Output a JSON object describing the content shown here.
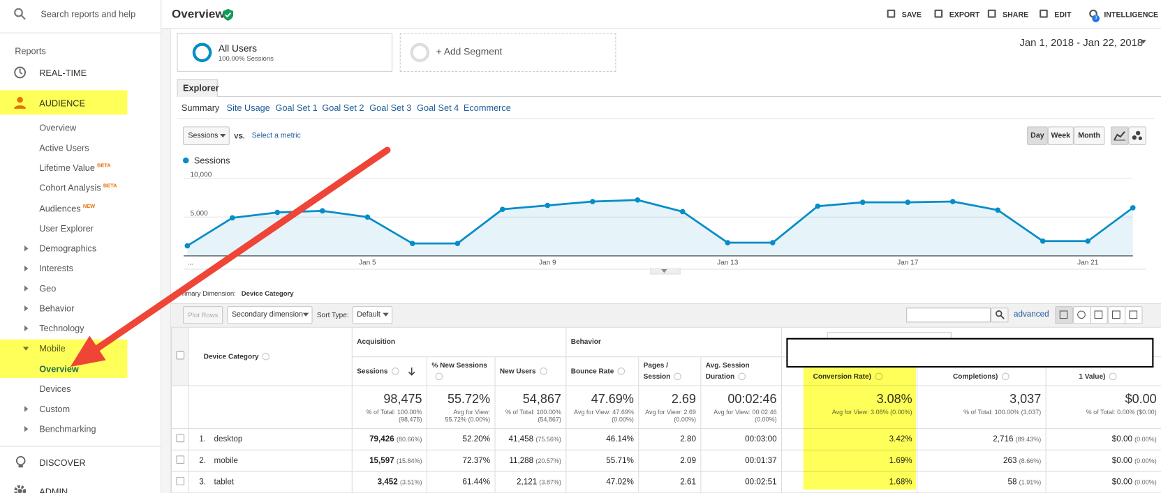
{
  "sidebar": {
    "search": "Search reports and help",
    "section": "Reports",
    "realtime": "REAL-TIME",
    "audience": {
      "label": "AUDIENCE",
      "items": [
        {
          "label": "Overview"
        },
        {
          "label": "Active Users"
        },
        {
          "label": "Lifetime Value",
          "badge": "BETA"
        },
        {
          "label": "Cohort Analysis",
          "badge": "BETA"
        },
        {
          "label": "Audiences",
          "badge": "NEW"
        },
        {
          "label": "User Explorer"
        },
        {
          "label": "Demographics",
          "expandable": true
        },
        {
          "label": "Interests",
          "expandable": true
        },
        {
          "label": "Geo",
          "expandable": true
        },
        {
          "label": "Behavior",
          "expandable": true
        },
        {
          "label": "Technology",
          "expandable": true
        },
        {
          "label": "Mobile",
          "expandable": true,
          "items": [
            {
              "label": "Overview",
              "active": true
            },
            {
              "label": "Devices"
            }
          ]
        },
        {
          "label": "Custom",
          "expandable": true
        },
        {
          "label": "Benchmarking",
          "expandable": true
        }
      ]
    },
    "discover": "DISCOVER",
    "admin": "ADMIN"
  },
  "header": {
    "title": "Overview",
    "actions": [
      "SAVE",
      "EXPORT",
      "SHARE",
      "EDIT",
      "INTELLIGENCE"
    ],
    "intelligence_badge": "3"
  },
  "segments": {
    "all": {
      "name": "All Users",
      "detail": "100.00% Sessions"
    },
    "add": "+ Add Segment",
    "date_range": "Jan 1, 2018 - Jan 22, 2018"
  },
  "tabs": {
    "main": "Explorer",
    "sub": [
      "Summary",
      "Site Usage",
      "Goal Set 1",
      "Goal Set 2",
      "Goal Set 3",
      "Goal Set 4",
      "Ecommerce"
    ],
    "active": 0
  },
  "controls": {
    "metric": "Sessions",
    "vs": "VS.",
    "select": "Select a metric",
    "intervals": [
      "Day",
      "Week",
      "Month"
    ],
    "active_interval": 0
  },
  "chart_data": {
    "type": "line",
    "categories": [
      "...",
      null,
      null,
      null,
      "Jan 5",
      null,
      null,
      null,
      "Jan 9",
      null,
      null,
      null,
      "Jan 13",
      null,
      null,
      null,
      "Jan 17",
      null,
      null,
      null,
      "Jan 21",
      null
    ],
    "series": [
      {
        "name": "Sessions",
        "color": "#058dc7",
        "values": [
          1300,
          4900,
          5600,
          5800,
          5000,
          1600,
          1600,
          6000,
          6500,
          7000,
          7200,
          5700,
          1700,
          1700,
          6400,
          6900,
          6900,
          7000,
          5900,
          1900,
          1900,
          6200
        ]
      }
    ],
    "ylim": [
      0,
      10000
    ],
    "yticks": [
      {
        "value": 5000,
        "label": "5,000"
      },
      {
        "value": 10000,
        "label": "10,000"
      }
    ],
    "grid": true,
    "area": true,
    "legend": "top-left"
  },
  "table": {
    "primary_dimension_label": "Primary Dimension:",
    "primary_dimension": "Device Category",
    "toolbar": {
      "plot_rows": "Plot Rows",
      "secondary": "Secondary dimension",
      "sort_type": "Sort Type:",
      "sort": "Default",
      "advanced": "advanced"
    },
    "dimension_header": "Device Category",
    "groups": [
      {
        "name": "Acquisition",
        "columns": 3
      },
      {
        "name": "Behavior",
        "columns": 3
      }
    ],
    "columns": [
      "Sessions",
      "% New Sessions",
      "New Users",
      "Bounce Rate",
      "Pages / Session",
      "Avg. Session Duration",
      "Conversion Rate)",
      "Completions)",
      "1 Value)"
    ],
    "sorted_column": 0,
    "totals": [
      {
        "value": "98,475",
        "note": "% of Total: 100.00% (98,475)"
      },
      {
        "value": "55.72%",
        "note": "Avg for View: 55.72% (0.00%)"
      },
      {
        "value": "54,867",
        "note": "% of Total: 100.00% (54,867)"
      },
      {
        "value": "47.69%",
        "note": "Avg for View: 47.69% (0.00%)"
      },
      {
        "value": "2.69",
        "note": "Avg for View: 2.69 (0.00%)"
      },
      {
        "value": "00:02:46",
        "note": "Avg for View: 00:02:46 (0.00%)"
      },
      {
        "value": "3.08%",
        "note": "Avg for View: 3.08% (0.00%)"
      },
      {
        "value": "3,037",
        "note": "% of Total: 100.00% (3,037)"
      },
      {
        "value": "$0.00",
        "note": "% of Total: 0.00% ($0.00)"
      }
    ],
    "rows": [
      {
        "rank": "1.",
        "name": "desktop",
        "cells": [
          {
            "value": "79,426",
            "share": "(80.66%)"
          },
          {
            "value": "52.20%"
          },
          {
            "value": "41,458",
            "share": "(75.56%)"
          },
          {
            "value": "46.14%"
          },
          {
            "value": "2.80"
          },
          {
            "value": "00:03:00"
          },
          {
            "value": "3.42%"
          },
          {
            "value": "2,716",
            "share": "(89.43%)"
          },
          {
            "value": "$0.00",
            "share": "(0.00%)"
          }
        ]
      },
      {
        "rank": "2.",
        "name": "mobile",
        "cells": [
          {
            "value": "15,597",
            "share": "(15.84%)"
          },
          {
            "value": "72.37%"
          },
          {
            "value": "11,288",
            "share": "(20.57%)"
          },
          {
            "value": "55.71%"
          },
          {
            "value": "2.09"
          },
          {
            "value": "00:01:37"
          },
          {
            "value": "1.69%"
          },
          {
            "value": "263",
            "share": "(8.66%)"
          },
          {
            "value": "$0.00",
            "share": "(0.00%)"
          }
        ]
      },
      {
        "rank": "3.",
        "name": "tablet",
        "cells": [
          {
            "value": "3,452",
            "share": "(3.51%)"
          },
          {
            "value": "61.44%"
          },
          {
            "value": "2,121",
            "share": "(3.87%)"
          },
          {
            "value": "47.02%"
          },
          {
            "value": "2.61"
          },
          {
            "value": "00:02:51"
          },
          {
            "value": "1.68%"
          },
          {
            "value": "58",
            "share": "(1.91%)"
          },
          {
            "value": "$0.00",
            "share": "(0.00%)"
          }
        ]
      }
    ]
  }
}
